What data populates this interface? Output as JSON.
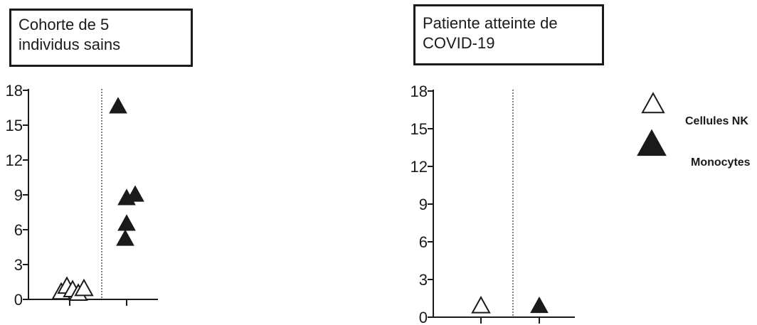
{
  "chart_data": [
    {
      "type": "scatter",
      "title_lines": [
        "Cohorte de 5",
        "individus sains"
      ],
      "xlabel": "",
      "ylabel": "",
      "ylim": [
        0,
        18
      ],
      "yticks": [
        "0",
        "3",
        "6",
        "9",
        "12",
        "15",
        "18"
      ],
      "groups": [
        "Cellules NK",
        "Monocytes"
      ],
      "series": [
        {
          "name": "Cellules NK",
          "marker": "open-triangle",
          "values": [
            0.3,
            0.8,
            0.5,
            0.2,
            0.6
          ]
        },
        {
          "name": "Monocytes",
          "marker": "filled-triangle",
          "values": [
            16.3,
            8.4,
            8.7,
            6.2,
            4.9
          ]
        }
      ],
      "grid": false
    },
    {
      "type": "scatter",
      "title_lines": [
        "Patiente atteinte de",
        "COVID-19"
      ],
      "xlabel": "",
      "ylabel": "",
      "ylim": [
        0,
        18
      ],
      "yticks": [
        "0",
        "3",
        "6",
        "9",
        "12",
        "15",
        "18"
      ],
      "groups": [
        "Cellules NK",
        "Monocytes"
      ],
      "series": [
        {
          "name": "Cellules NK",
          "marker": "open-triangle",
          "values": [
            0.6
          ]
        },
        {
          "name": "Monocytes",
          "marker": "filled-triangle",
          "values": [
            0.6
          ]
        }
      ],
      "grid": false
    }
  ],
  "legend": {
    "placement": "right",
    "items": [
      {
        "label": "Cellules NK",
        "marker": "open-triangle"
      },
      {
        "label": "Monocytes",
        "marker": "filled-triangle"
      }
    ]
  },
  "colors": {
    "ink": "#1a1a1a",
    "divider": "#555555"
  }
}
